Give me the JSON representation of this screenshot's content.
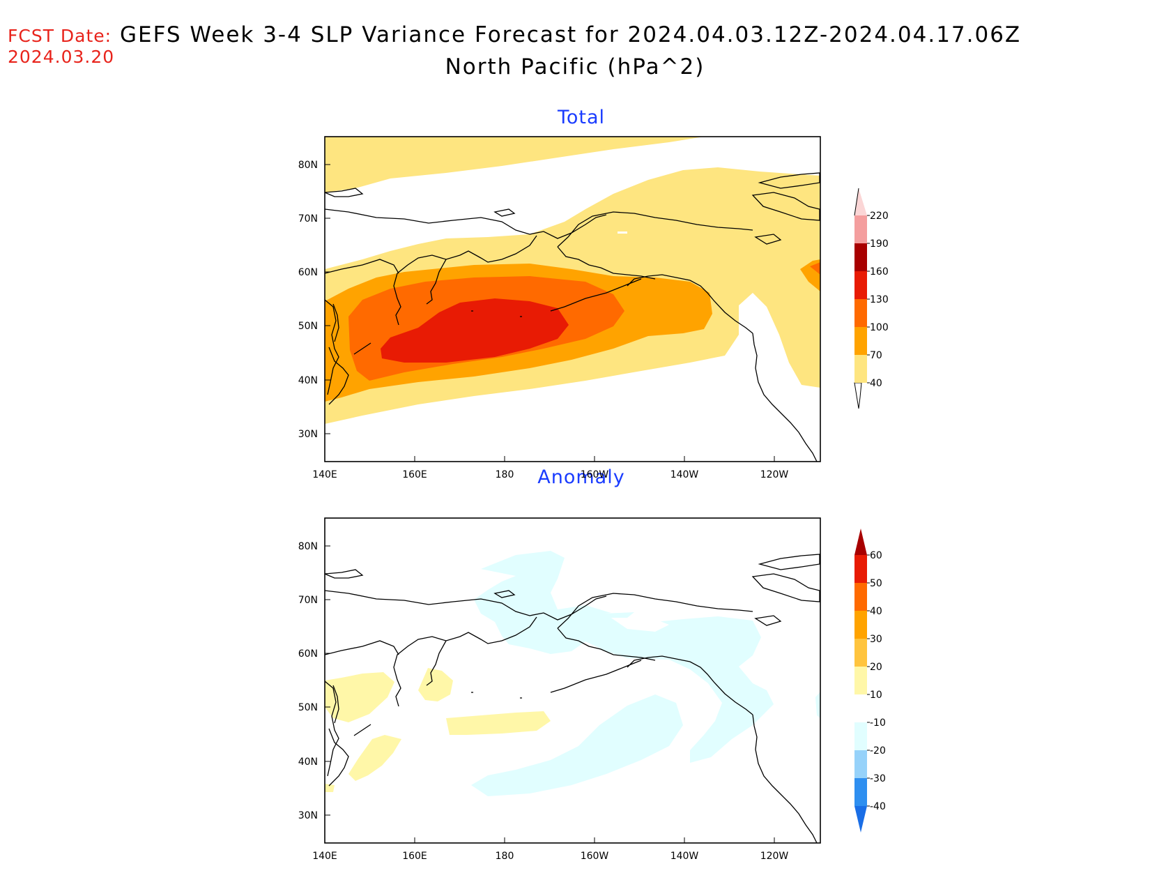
{
  "header": {
    "fcst_label": "FCST Date:",
    "fcst_date": "2024.03.20",
    "title_line1": "GEFS Week 3-4 SLP Variance Forecast for 2024.04.03.12Z-2024.04.17.06Z",
    "title_line2": "North Pacific (hPa^2)"
  },
  "axes": {
    "lat_labels": [
      "80N",
      "70N",
      "60N",
      "50N",
      "40N",
      "30N"
    ],
    "lon_labels": [
      "140E",
      "160E",
      "180",
      "160W",
      "140W",
      "120W"
    ]
  },
  "panels": [
    {
      "title": "Total",
      "colorbar": {
        "labels": [
          "40",
          "70",
          "100",
          "130",
          "160",
          "190",
          "220"
        ],
        "colors": [
          "#fee580",
          "#ffa300",
          "#ff6a00",
          "#e81b04",
          "#a80000",
          "#f49e9e",
          "#fbd6d6"
        ]
      }
    },
    {
      "title": "Anomaly",
      "colorbar": {
        "labels": [
          "-40",
          "-30",
          "-20",
          "-10",
          "10",
          "20",
          "30",
          "40",
          "50",
          "60"
        ],
        "colors": [
          "#1a6ee6",
          "#2e8ff0",
          "#96d2fa",
          "#e1feff",
          "#ffffff",
          "#fff7a8",
          "#ffc43e",
          "#ffa300",
          "#ff6a00",
          "#e81b04",
          "#a80000"
        ]
      }
    }
  ],
  "map_colors": {
    "c40": "#fee580",
    "c70": "#ffa300",
    "c100": "#ff6a00",
    "c130": "#e81b04",
    "anom_pos": "#fff7a8",
    "anom_neg": "#e1feff"
  }
}
